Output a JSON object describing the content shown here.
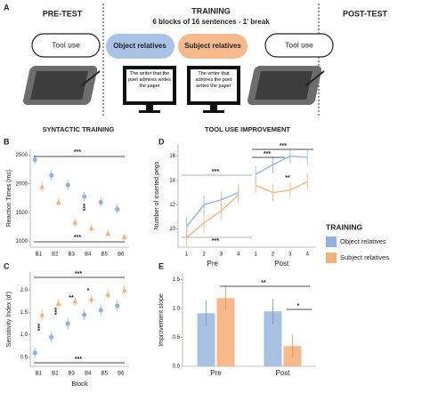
{
  "panel_labels": [
    "A",
    "B",
    "C",
    "D",
    "E"
  ],
  "panel_a": {
    "pre_title": "PRE-TEST",
    "training_title": "TRAINING",
    "training_subtitle": "6 blocks of 16 sentences - 1' break",
    "post_title": "POST-TEST",
    "pre_box": "Tool use",
    "object_box": "Object relatives",
    "subject_box": "Subject relatives",
    "post_box": "Tool use",
    "object_sentence": "The writer that the poet admires writes the paper",
    "subject_sentence": "The writer that admires the poet writes the paper"
  },
  "headers": {
    "syntactic": "SYNTACTIC TRAINING",
    "tool_use": "TOOL USE IMPROVEMENT"
  },
  "legend": {
    "title": "TRAINING"
  },
  "chart_data": [
    {
      "type": "point",
      "ylabel": "Reaction Times (ms)",
      "categories": [
        "B1",
        "B2",
        "B3",
        "B4",
        "B5",
        "B6"
      ],
      "ylim": [
        900,
        2600
      ],
      "yticks": [
        1000,
        1500,
        2000,
        2500
      ],
      "series": [
        {
          "name": "Object relatives",
          "color": "#8fb2e3",
          "values": [
            2420,
            2150,
            1980,
            1780,
            1680,
            1560
          ],
          "errors": [
            80,
            90,
            90,
            80,
            80,
            80
          ]
        },
        {
          "name": "Subject relatives",
          "color": "#f5b17a",
          "values": [
            1950,
            1680,
            1330,
            1230,
            1140,
            1080
          ],
          "errors": [
            90,
            80,
            70,
            60,
            60,
            60
          ]
        }
      ],
      "annotations": [
        {
          "text": "***"
        },
        {
          "text": "***"
        },
        {
          "text": "***"
        }
      ]
    },
    {
      "type": "point",
      "ylabel": "Sensitivity Index (d')",
      "xlabel": "Block",
      "categories": [
        "B1",
        "B2",
        "B3",
        "B4",
        "B5",
        "B6"
      ],
      "ylim": [
        0.3,
        2.4
      ],
      "yticks": [
        {
          "value": 0.5,
          "label": "0.5"
        },
        {
          "value": 1,
          "label": "1.0"
        },
        {
          "value": 1.5,
          "label": "1.5"
        },
        {
          "value": 2,
          "label": "2.0"
        }
      ],
      "series": [
        {
          "name": "Object relatives",
          "color": "#8fb2e3",
          "values": [
            0.6,
            0.95,
            1.25,
            1.45,
            1.55,
            1.65
          ],
          "errors": [
            0.12,
            0.12,
            0.12,
            0.12,
            0.12,
            0.12
          ]
        },
        {
          "name": "Subject relatives",
          "color": "#f5b17a",
          "values": [
            1.45,
            1.7,
            1.75,
            1.8,
            1.9,
            2.0
          ],
          "errors": [
            0.12,
            0.1,
            0.1,
            0.1,
            0.1,
            0.1
          ]
        }
      ],
      "annotations": [
        {
          "text": "***"
        },
        {
          "text": "***"
        },
        {
          "text": "***"
        },
        {
          "text": "***"
        },
        {
          "text": "**"
        },
        {
          "text": "*"
        }
      ]
    },
    {
      "type": "line",
      "ylabel": "Number of inserted pegs",
      "categories": [
        "1",
        "2",
        "3",
        "4",
        "1",
        "2",
        "3",
        "4"
      ],
      "groups": [
        "Pre",
        "Post"
      ],
      "ylim": [
        8.5,
        17
      ],
      "yticks": [
        10,
        12,
        14,
        16
      ],
      "series": [
        {
          "name": "Object relatives",
          "color": "#8fb2e3",
          "values": [
            10.2,
            12.0,
            12.4,
            13.0,
            14.5,
            15.3,
            16.0,
            15.9
          ],
          "errors": [
            0.8,
            0.8,
            0.7,
            0.7,
            0.7,
            0.7,
            0.6,
            0.6
          ]
        },
        {
          "name": "Subject relatives",
          "color": "#f5b17a",
          "values": [
            9.3,
            10.5,
            11.5,
            12.8,
            13.6,
            13.0,
            13.2,
            13.9
          ],
          "errors": [
            0.8,
            0.8,
            0.8,
            0.7,
            0.7,
            0.7,
            0.7,
            0.7
          ]
        }
      ],
      "annotations": [
        {
          "text": "***"
        },
        {
          "text": "***"
        },
        {
          "text": "***",
          "color": "#999999"
        },
        {
          "text": "***",
          "color": "#999999"
        },
        {
          "text": "**"
        }
      ]
    },
    {
      "type": "bar",
      "ylabel": "Improvement slope",
      "categories": [
        "Pre",
        "Post"
      ],
      "ylim": [
        0,
        1.6
      ],
      "yticks": [
        {
          "value": 0,
          "label": "0.0"
        },
        {
          "value": 0.5,
          "label": "0.5"
        },
        {
          "value": 1,
          "label": "1.0"
        },
        {
          "value": 1.5,
          "label": "1.5"
        }
      ],
      "series": [
        {
          "name": "Object relatives",
          "color": "#a7c1e3",
          "values": [
            0.92,
            0.95
          ],
          "errors": [
            0.22,
            0.22
          ]
        },
        {
          "name": "Subject relatives",
          "color": "#f7b88a",
          "values": [
            1.18,
            0.35
          ],
          "errors": [
            0.2,
            0.2
          ]
        }
      ],
      "annotations": [
        {
          "text": "**"
        },
        {
          "text": "*"
        }
      ]
    }
  ]
}
